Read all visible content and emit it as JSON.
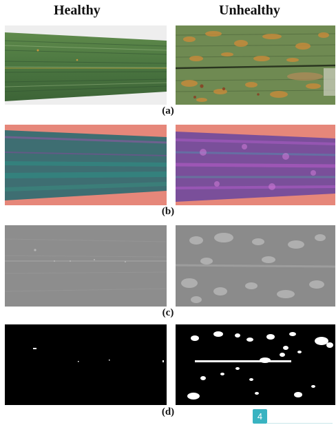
{
  "headers": {
    "healthy": "Healthy",
    "unhealthy": "Unhealthy"
  },
  "captions": {
    "a": "(a)",
    "b": "(b)",
    "c": "(c)",
    "d": "(d)"
  },
  "page_badge": "4",
  "colors": {
    "leaf_green": "#4e7a3e",
    "rust_orange": "#c98a3a",
    "pink_bg": "#e6877a",
    "teal": "#2f7f78",
    "gray_mid": "#8c8c8c"
  }
}
